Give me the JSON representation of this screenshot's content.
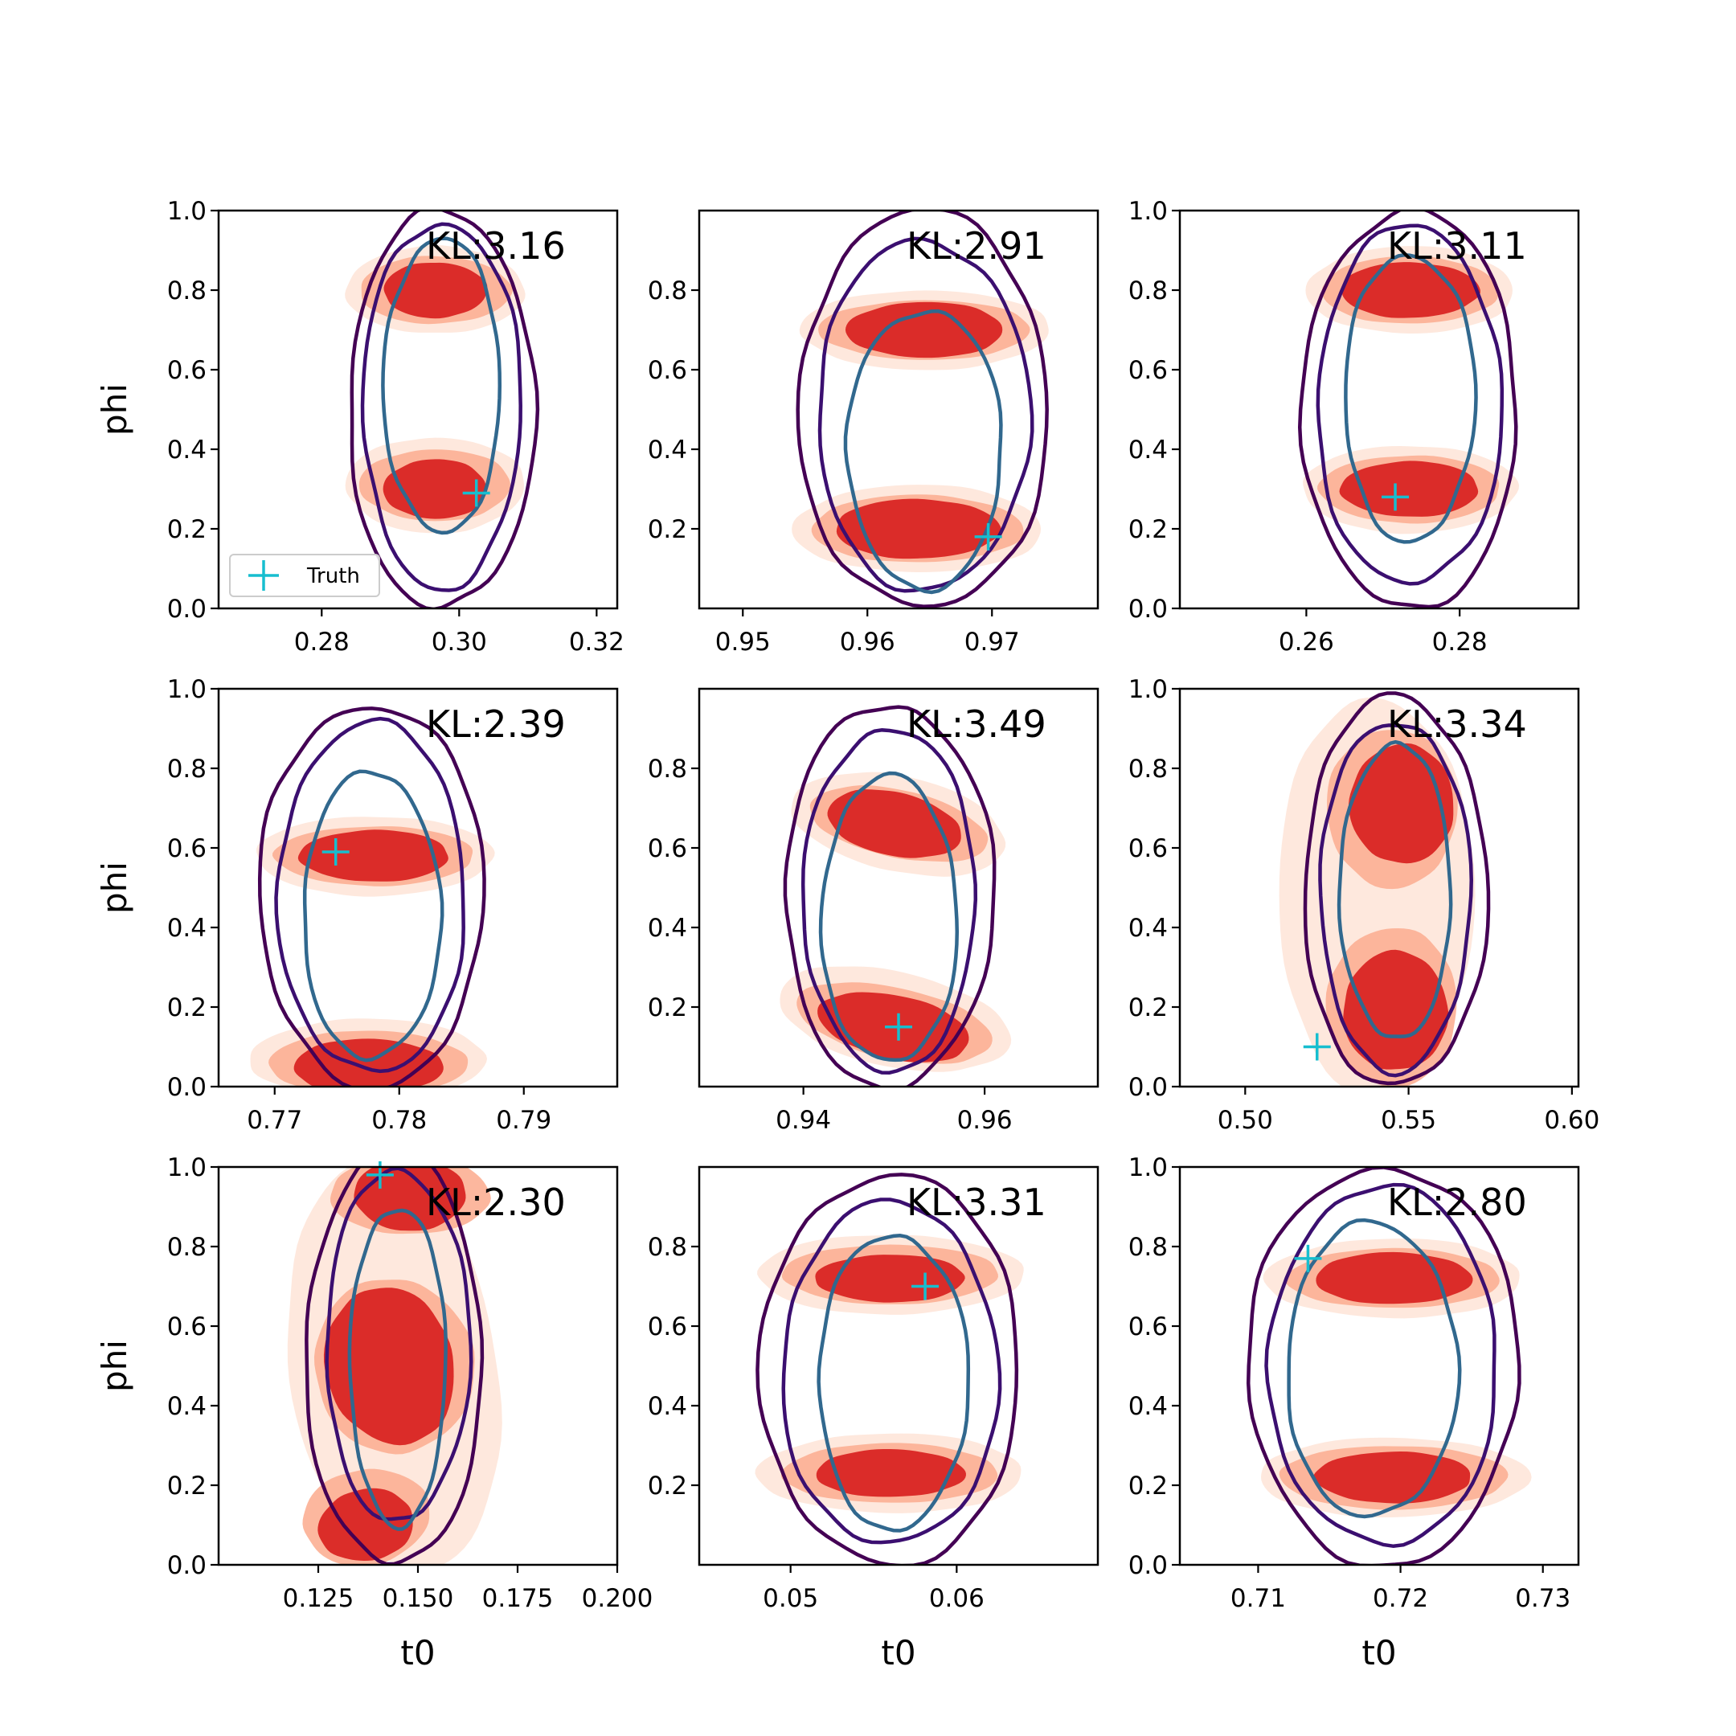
{
  "chart_data": {
    "type": "contour",
    "xlabel": "t0",
    "ylabel": "phi",
    "colors": {
      "fill_light": "#fee0d2",
      "fill_mid": "#fcaf93",
      "fill_dark": "#d92523",
      "contour_inner": "#31688e",
      "contour_mid": "#3b0f70",
      "contour_outer": "#440154",
      "truth": "#17becf",
      "axes": "#000000"
    },
    "legend": {
      "label": "Truth",
      "marker": "+",
      "placement": "lower-left",
      "panel": 0
    },
    "panels": [
      {
        "kl_label": "KL:3.16",
        "xlim": [
          0.265,
          0.323
        ],
        "ylim": [
          0.0,
          1.0
        ],
        "xticks": [
          0.28,
          0.3,
          0.32
        ],
        "xtick_labels": [
          "0.28",
          "0.30",
          "0.32"
        ],
        "yticks": [
          0.0,
          0.2,
          0.4,
          0.6,
          0.8,
          1.0
        ],
        "ytick_labels": [
          "0.0",
          "0.2",
          "0.4",
          "0.6",
          "0.8",
          "1.0"
        ],
        "truth": [
          0.3025,
          0.29
        ],
        "blobs": [
          {
            "level": 0,
            "cx": 0.2965,
            "cy": 0.8,
            "rx": 0.013,
            "ry": 0.11,
            "rot": 0
          },
          {
            "level": 1,
            "cx": 0.2965,
            "cy": 0.8,
            "rx": 0.011,
            "ry": 0.085,
            "rot": 0
          },
          {
            "level": 2,
            "cx": 0.2965,
            "cy": 0.8,
            "rx": 0.0075,
            "ry": 0.07,
            "rot": 0
          },
          {
            "level": 0,
            "cx": 0.2965,
            "cy": 0.31,
            "rx": 0.013,
            "ry": 0.12,
            "rot": 0
          },
          {
            "level": 1,
            "cx": 0.2965,
            "cy": 0.31,
            "rx": 0.011,
            "ry": 0.09,
            "rot": 0
          },
          {
            "level": 2,
            "cx": 0.2965,
            "cy": 0.3,
            "rx": 0.0075,
            "ry": 0.075,
            "rot": 0
          }
        ],
        "contours": [
          {
            "level": "outer",
            "cx": 0.2975,
            "cy": 0.5,
            "rx": 0.0135,
            "ry": 0.5
          },
          {
            "level": "mid",
            "cx": 0.2975,
            "cy": 0.51,
            "rx": 0.0115,
            "ry": 0.46
          },
          {
            "level": "inner",
            "cx": 0.2975,
            "cy": 0.56,
            "rx": 0.0085,
            "ry": 0.37
          }
        ]
      },
      {
        "kl_label": "KL:2.91",
        "xlim": [
          0.9465,
          0.9785
        ],
        "ylim": [
          0.0,
          1.0
        ],
        "xticks": [
          0.95,
          0.96,
          0.97
        ],
        "xtick_labels": [
          "0.95",
          "0.96",
          "0.97"
        ],
        "yticks": [
          0.2,
          0.4,
          0.6,
          0.8
        ],
        "ytick_labels": [
          "0.2",
          "0.4",
          "0.6",
          "0.8"
        ],
        "truth": [
          0.9697,
          0.18
        ],
        "blobs": [
          {
            "level": 0,
            "cx": 0.9646,
            "cy": 0.7,
            "rx": 0.01,
            "ry": 0.1,
            "rot": 0
          },
          {
            "level": 1,
            "cx": 0.9646,
            "cy": 0.7,
            "rx": 0.0085,
            "ry": 0.075,
            "rot": 0
          },
          {
            "level": 2,
            "cx": 0.9646,
            "cy": 0.7,
            "rx": 0.0063,
            "ry": 0.07,
            "rot": 0
          },
          {
            "level": 0,
            "cx": 0.964,
            "cy": 0.2,
            "rx": 0.01,
            "ry": 0.11,
            "rot": 0
          },
          {
            "level": 1,
            "cx": 0.964,
            "cy": 0.2,
            "rx": 0.0085,
            "ry": 0.085,
            "rot": 0
          },
          {
            "level": 2,
            "cx": 0.964,
            "cy": 0.2,
            "rx": 0.0066,
            "ry": 0.075,
            "rot": 0
          }
        ],
        "contours": [
          {
            "level": "outer",
            "cx": 0.9645,
            "cy": 0.5,
            "rx": 0.01,
            "ry": 0.5
          },
          {
            "level": "mid",
            "cx": 0.9645,
            "cy": 0.485,
            "rx": 0.0085,
            "ry": 0.44
          },
          {
            "level": "inner",
            "cx": 0.9646,
            "cy": 0.4,
            "rx": 0.0062,
            "ry": 0.35
          }
        ]
      },
      {
        "kl_label": "KL:3.11",
        "xlim": [
          0.2435,
          0.2955
        ],
        "ylim": [
          0.0,
          1.0
        ],
        "xticks": [
          0.26,
          0.28
        ],
        "xtick_labels": [
          "0.26",
          "0.28"
        ],
        "yticks": [
          0.0,
          0.2,
          0.4,
          0.6,
          0.8,
          1.0
        ],
        "ytick_labels": [
          "0.0",
          "0.2",
          "0.4",
          "0.6",
          "0.8",
          "1.0"
        ],
        "truth": [
          0.2716,
          0.28
        ],
        "blobs": [
          {
            "level": 0,
            "cx": 0.2735,
            "cy": 0.8,
            "rx": 0.0135,
            "ry": 0.11,
            "rot": 0
          },
          {
            "level": 1,
            "cx": 0.2735,
            "cy": 0.8,
            "rx": 0.0115,
            "ry": 0.085,
            "rot": 0
          },
          {
            "level": 2,
            "cx": 0.2735,
            "cy": 0.8,
            "rx": 0.009,
            "ry": 0.07,
            "rot": 0
          },
          {
            "level": 0,
            "cx": 0.2735,
            "cy": 0.3,
            "rx": 0.014,
            "ry": 0.11,
            "rot": 0
          },
          {
            "level": 1,
            "cx": 0.2735,
            "cy": 0.3,
            "rx": 0.0118,
            "ry": 0.085,
            "rot": 0
          },
          {
            "level": 2,
            "cx": 0.2735,
            "cy": 0.3,
            "rx": 0.009,
            "ry": 0.07,
            "rot": 0
          }
        ],
        "contours": [
          {
            "level": "outer",
            "cx": 0.2735,
            "cy": 0.5,
            "rx": 0.014,
            "ry": 0.5
          },
          {
            "level": "mid",
            "cx": 0.2735,
            "cy": 0.51,
            "rx": 0.012,
            "ry": 0.45
          },
          {
            "level": "inner",
            "cx": 0.2735,
            "cy": 0.53,
            "rx": 0.0085,
            "ry": 0.36
          }
        ]
      },
      {
        "kl_label": "KL:2.39",
        "xlim": [
          0.7655,
          0.7975
        ],
        "ylim": [
          0.0,
          1.0
        ],
        "xticks": [
          0.77,
          0.78,
          0.79
        ],
        "xtick_labels": [
          "0.77",
          "0.78",
          "0.79"
        ],
        "yticks": [
          0.0,
          0.2,
          0.4,
          0.6,
          0.8,
          1.0
        ],
        "ytick_labels": [
          "0.0",
          "0.2",
          "0.4",
          "0.6",
          "0.8",
          "1.0"
        ],
        "truth": [
          0.7749,
          0.59
        ],
        "blobs": [
          {
            "level": 0,
            "cx": 0.778,
            "cy": 0.58,
            "rx": 0.0095,
            "ry": 0.1,
            "rot": 0
          },
          {
            "level": 1,
            "cx": 0.778,
            "cy": 0.58,
            "rx": 0.008,
            "ry": 0.075,
            "rot": 0
          },
          {
            "level": 2,
            "cx": 0.778,
            "cy": 0.58,
            "rx": 0.006,
            "ry": 0.065,
            "rot": 0
          },
          {
            "level": 0,
            "cx": 0.7775,
            "cy": 0.07,
            "rx": 0.0095,
            "ry": 0.1,
            "rot": 0
          },
          {
            "level": 1,
            "cx": 0.7775,
            "cy": 0.06,
            "rx": 0.008,
            "ry": 0.08,
            "rot": 0
          },
          {
            "level": 2,
            "cx": 0.7775,
            "cy": 0.05,
            "rx": 0.006,
            "ry": 0.07,
            "rot": 0
          }
        ],
        "contours": [
          {
            "level": "outer",
            "cx": 0.7778,
            "cy": 0.48,
            "rx": 0.009,
            "ry": 0.48
          },
          {
            "level": "mid",
            "cx": 0.7778,
            "cy": 0.475,
            "rx": 0.0075,
            "ry": 0.44
          },
          {
            "level": "inner",
            "cx": 0.7778,
            "cy": 0.43,
            "rx": 0.0055,
            "ry": 0.36
          }
        ]
      },
      {
        "kl_label": "KL:3.49",
        "xlim": [
          0.9285,
          0.9725
        ],
        "ylim": [
          0.0,
          1.0
        ],
        "xticks": [
          0.94,
          0.96
        ],
        "xtick_labels": [
          "0.94",
          "0.96"
        ],
        "yticks": [
          0.2,
          0.4,
          0.6,
          0.8
        ],
        "ytick_labels": [
          "0.2",
          "0.4",
          "0.6",
          "0.8"
        ],
        "truth": [
          0.9505,
          0.15
        ],
        "blobs": [
          {
            "level": 0,
            "cx": 0.9505,
            "cy": 0.66,
            "rx": 0.012,
            "ry": 0.12,
            "rot": 12
          },
          {
            "level": 1,
            "cx": 0.9505,
            "cy": 0.66,
            "rx": 0.01,
            "ry": 0.085,
            "rot": 12
          },
          {
            "level": 2,
            "cx": 0.95,
            "cy": 0.66,
            "rx": 0.0075,
            "ry": 0.08,
            "rot": 12
          },
          {
            "level": 0,
            "cx": 0.95,
            "cy": 0.17,
            "rx": 0.013,
            "ry": 0.12,
            "rot": 12
          },
          {
            "level": 1,
            "cx": 0.95,
            "cy": 0.16,
            "rx": 0.011,
            "ry": 0.09,
            "rot": 12
          },
          {
            "level": 2,
            "cx": 0.95,
            "cy": 0.15,
            "rx": 0.0085,
            "ry": 0.08,
            "rot": 12
          }
        ],
        "contours": [
          {
            "level": "outer",
            "cx": 0.9495,
            "cy": 0.48,
            "rx": 0.0115,
            "ry": 0.48
          },
          {
            "level": "mid",
            "cx": 0.9495,
            "cy": 0.47,
            "rx": 0.0095,
            "ry": 0.43
          },
          {
            "level": "inner",
            "cx": 0.9495,
            "cy": 0.42,
            "rx": 0.0075,
            "ry": 0.36
          }
        ]
      },
      {
        "kl_label": "KL:3.34",
        "xlim": [
          0.48,
          0.602
        ],
        "ylim": [
          0.0,
          1.0
        ],
        "xticks": [
          0.5,
          0.55,
          0.6
        ],
        "xtick_labels": [
          "0.50",
          "0.55",
          "0.60"
        ],
        "yticks": [
          0.0,
          0.2,
          0.4,
          0.6,
          0.8,
          1.0
        ],
        "ytick_labels": [
          "0.0",
          "0.2",
          "0.4",
          "0.6",
          "0.8",
          "1.0"
        ],
        "truth": [
          0.522,
          0.1
        ],
        "blobs": [
          {
            "level": 0,
            "cx": 0.54,
            "cy": 0.48,
            "rx": 0.03,
            "ry": 0.5,
            "rot": 0
          },
          {
            "level": 1,
            "cx": 0.545,
            "cy": 0.7,
            "rx": 0.02,
            "ry": 0.2,
            "rot": 0
          },
          {
            "level": 1,
            "cx": 0.545,
            "cy": 0.2,
            "rx": 0.02,
            "ry": 0.2,
            "rot": 0
          },
          {
            "level": 2,
            "cx": 0.548,
            "cy": 0.71,
            "rx": 0.016,
            "ry": 0.15,
            "rot": 0
          },
          {
            "level": 2,
            "cx": 0.546,
            "cy": 0.19,
            "rx": 0.016,
            "ry": 0.15,
            "rot": 0
          }
        ],
        "contours": [
          {
            "level": "outer",
            "cx": 0.546,
            "cy": 0.49,
            "rx": 0.028,
            "ry": 0.49
          },
          {
            "level": "mid",
            "cx": 0.546,
            "cy": 0.48,
            "rx": 0.023,
            "ry": 0.44
          },
          {
            "level": "inner",
            "cx": 0.546,
            "cy": 0.49,
            "rx": 0.017,
            "ry": 0.37
          }
        ]
      },
      {
        "kl_label": "KL:2.30",
        "xlim": [
          0.1,
          0.2
        ],
        "ylim": [
          0.0,
          1.0
        ],
        "xticks": [
          0.125,
          0.15,
          0.175,
          0.2
        ],
        "xtick_labels": [
          "0.125",
          "0.150",
          "0.175",
          "0.200"
        ],
        "yticks": [
          0.0,
          0.2,
          0.4,
          0.6,
          0.8,
          1.0
        ],
        "ytick_labels": [
          "0.0",
          "0.2",
          "0.4",
          "0.6",
          "0.8",
          "1.0"
        ],
        "truth": [
          0.1405,
          0.98
        ],
        "blobs": [
          {
            "level": 0,
            "cx": 0.144,
            "cy": 0.5,
            "rx": 0.026,
            "ry": 0.52,
            "rot": -8
          },
          {
            "level": 1,
            "cx": 0.148,
            "cy": 0.93,
            "rx": 0.02,
            "ry": 0.1,
            "rot": 0
          },
          {
            "level": 1,
            "cx": 0.144,
            "cy": 0.5,
            "rx": 0.02,
            "ry": 0.22,
            "rot": -10
          },
          {
            "level": 1,
            "cx": 0.137,
            "cy": 0.12,
            "rx": 0.016,
            "ry": 0.12,
            "rot": -10
          },
          {
            "level": 2,
            "cx": 0.148,
            "cy": 0.93,
            "rx": 0.014,
            "ry": 0.09,
            "rot": 0
          },
          {
            "level": 2,
            "cx": 0.143,
            "cy": 0.5,
            "rx": 0.016,
            "ry": 0.2,
            "rot": -15
          },
          {
            "level": 2,
            "cx": 0.137,
            "cy": 0.1,
            "rx": 0.012,
            "ry": 0.09,
            "rot": -10
          }
        ],
        "contours": [
          {
            "level": "outer",
            "cx": 0.144,
            "cy": 0.52,
            "rx": 0.022,
            "ry": 0.52
          },
          {
            "level": "mid",
            "cx": 0.145,
            "cy": 0.55,
            "rx": 0.018,
            "ry": 0.44
          },
          {
            "level": "inner",
            "cx": 0.145,
            "cy": 0.5,
            "rx": 0.012,
            "ry": 0.4
          }
        ]
      },
      {
        "kl_label": "KL:3.31",
        "xlim": [
          0.0445,
          0.0685
        ],
        "ylim": [
          0.0,
          1.0
        ],
        "xticks": [
          0.05,
          0.06
        ],
        "xtick_labels": [
          "0.05",
          "0.06"
        ],
        "yticks": [
          0.2,
          0.4,
          0.6,
          0.8
        ],
        "ytick_labels": [
          "0.2",
          "0.4",
          "0.6",
          "0.8"
        ],
        "truth": [
          0.0581,
          0.7
        ],
        "blobs": [
          {
            "level": 0,
            "cx": 0.056,
            "cy": 0.73,
            "rx": 0.008,
            "ry": 0.1,
            "rot": 0
          },
          {
            "level": 1,
            "cx": 0.056,
            "cy": 0.73,
            "rx": 0.0065,
            "ry": 0.075,
            "rot": 0
          },
          {
            "level": 2,
            "cx": 0.056,
            "cy": 0.72,
            "rx": 0.0045,
            "ry": 0.06,
            "rot": 0
          },
          {
            "level": 0,
            "cx": 0.056,
            "cy": 0.23,
            "rx": 0.008,
            "ry": 0.1,
            "rot": 0
          },
          {
            "level": 1,
            "cx": 0.056,
            "cy": 0.23,
            "rx": 0.0065,
            "ry": 0.075,
            "rot": 0
          },
          {
            "level": 2,
            "cx": 0.056,
            "cy": 0.23,
            "rx": 0.0045,
            "ry": 0.06,
            "rot": 0
          }
        ],
        "contours": [
          {
            "level": "outer",
            "cx": 0.056,
            "cy": 0.49,
            "rx": 0.0078,
            "ry": 0.49
          },
          {
            "level": "mid",
            "cx": 0.056,
            "cy": 0.48,
            "rx": 0.0065,
            "ry": 0.43
          },
          {
            "level": "inner",
            "cx": 0.0562,
            "cy": 0.46,
            "rx": 0.0045,
            "ry": 0.37
          }
        ]
      },
      {
        "kl_label": "KL:2.80",
        "xlim": [
          0.7045,
          0.7325
        ],
        "ylim": [
          0.0,
          1.0
        ],
        "xticks": [
          0.71,
          0.72,
          0.73
        ],
        "xtick_labels": [
          "0.71",
          "0.72",
          "0.73"
        ],
        "yticks": [
          0.0,
          0.2,
          0.4,
          0.6,
          0.8,
          1.0
        ],
        "ytick_labels": [
          "0.0",
          "0.2",
          "0.4",
          "0.6",
          "0.8",
          "1.0"
        ],
        "truth": [
          0.7135,
          0.77
        ],
        "blobs": [
          {
            "level": 0,
            "cx": 0.7195,
            "cy": 0.72,
            "rx": 0.009,
            "ry": 0.1,
            "rot": 0
          },
          {
            "level": 1,
            "cx": 0.7195,
            "cy": 0.72,
            "rx": 0.0075,
            "ry": 0.075,
            "rot": 0
          },
          {
            "level": 2,
            "cx": 0.7195,
            "cy": 0.72,
            "rx": 0.0055,
            "ry": 0.065,
            "rot": 0
          },
          {
            "level": 0,
            "cx": 0.7195,
            "cy": 0.22,
            "rx": 0.0095,
            "ry": 0.1,
            "rot": 0
          },
          {
            "level": 1,
            "cx": 0.7195,
            "cy": 0.22,
            "rx": 0.008,
            "ry": 0.08,
            "rot": 0
          },
          {
            "level": 2,
            "cx": 0.7195,
            "cy": 0.22,
            "rx": 0.0055,
            "ry": 0.065,
            "rot": 0
          }
        ],
        "contours": [
          {
            "level": "outer",
            "cx": 0.7188,
            "cy": 0.5,
            "rx": 0.0095,
            "ry": 0.5
          },
          {
            "level": "mid",
            "cx": 0.7188,
            "cy": 0.5,
            "rx": 0.008,
            "ry": 0.45
          },
          {
            "level": "inner",
            "cx": 0.718,
            "cy": 0.49,
            "rx": 0.006,
            "ry": 0.37
          }
        ]
      }
    ]
  }
}
